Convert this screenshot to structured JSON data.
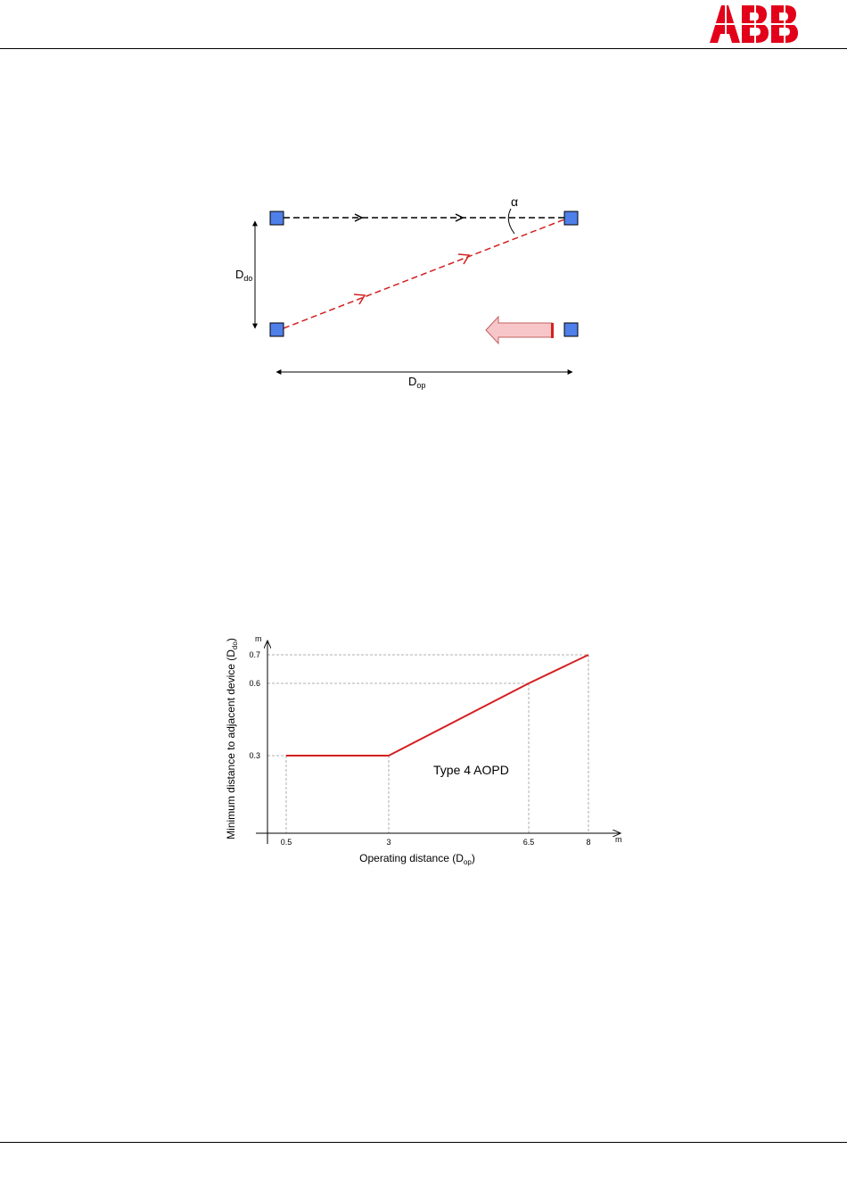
{
  "header": {
    "logo_text": "ABB",
    "logo_color": "#e2001a"
  },
  "diagram": {
    "angle_label": "α",
    "vertical_label_main": "D",
    "vertical_label_sub": "do",
    "horizontal_label_main": "D",
    "horizontal_label_sub": "op",
    "colors": {
      "device": "#4f7fe8",
      "upper_beam": "#000000",
      "lower_beam": "#d42020",
      "arrow_fill": "#f7c6c8"
    }
  },
  "chart": {
    "y_axis_label": "Minimum distance to adjacent device (D",
    "y_axis_label_sub": "do",
    "y_axis_label_end": ")",
    "x_axis_label": "Operating distance (D",
    "x_axis_label_sub": "op",
    "x_axis_label_end": ")",
    "y_unit": "m",
    "x_unit": "m",
    "annotation": "Type 4 AOPD",
    "line_color": "#d42020"
  },
  "chart_data": {
    "type": "line",
    "title": "",
    "xlabel": "Operating distance (Dop)",
    "ylabel": "Minimum distance to adjacent device (Ddo)",
    "x_ticks": [
      "0.5",
      "3",
      "6.5",
      "8"
    ],
    "y_ticks": [
      "0.3",
      "0.6",
      "0.7"
    ],
    "series": [
      {
        "x": [
          0.5,
          3,
          6.5,
          8
        ],
        "y": [
          0.3,
          0.3,
          0.6,
          0.7
        ]
      }
    ],
    "grid": false
  }
}
